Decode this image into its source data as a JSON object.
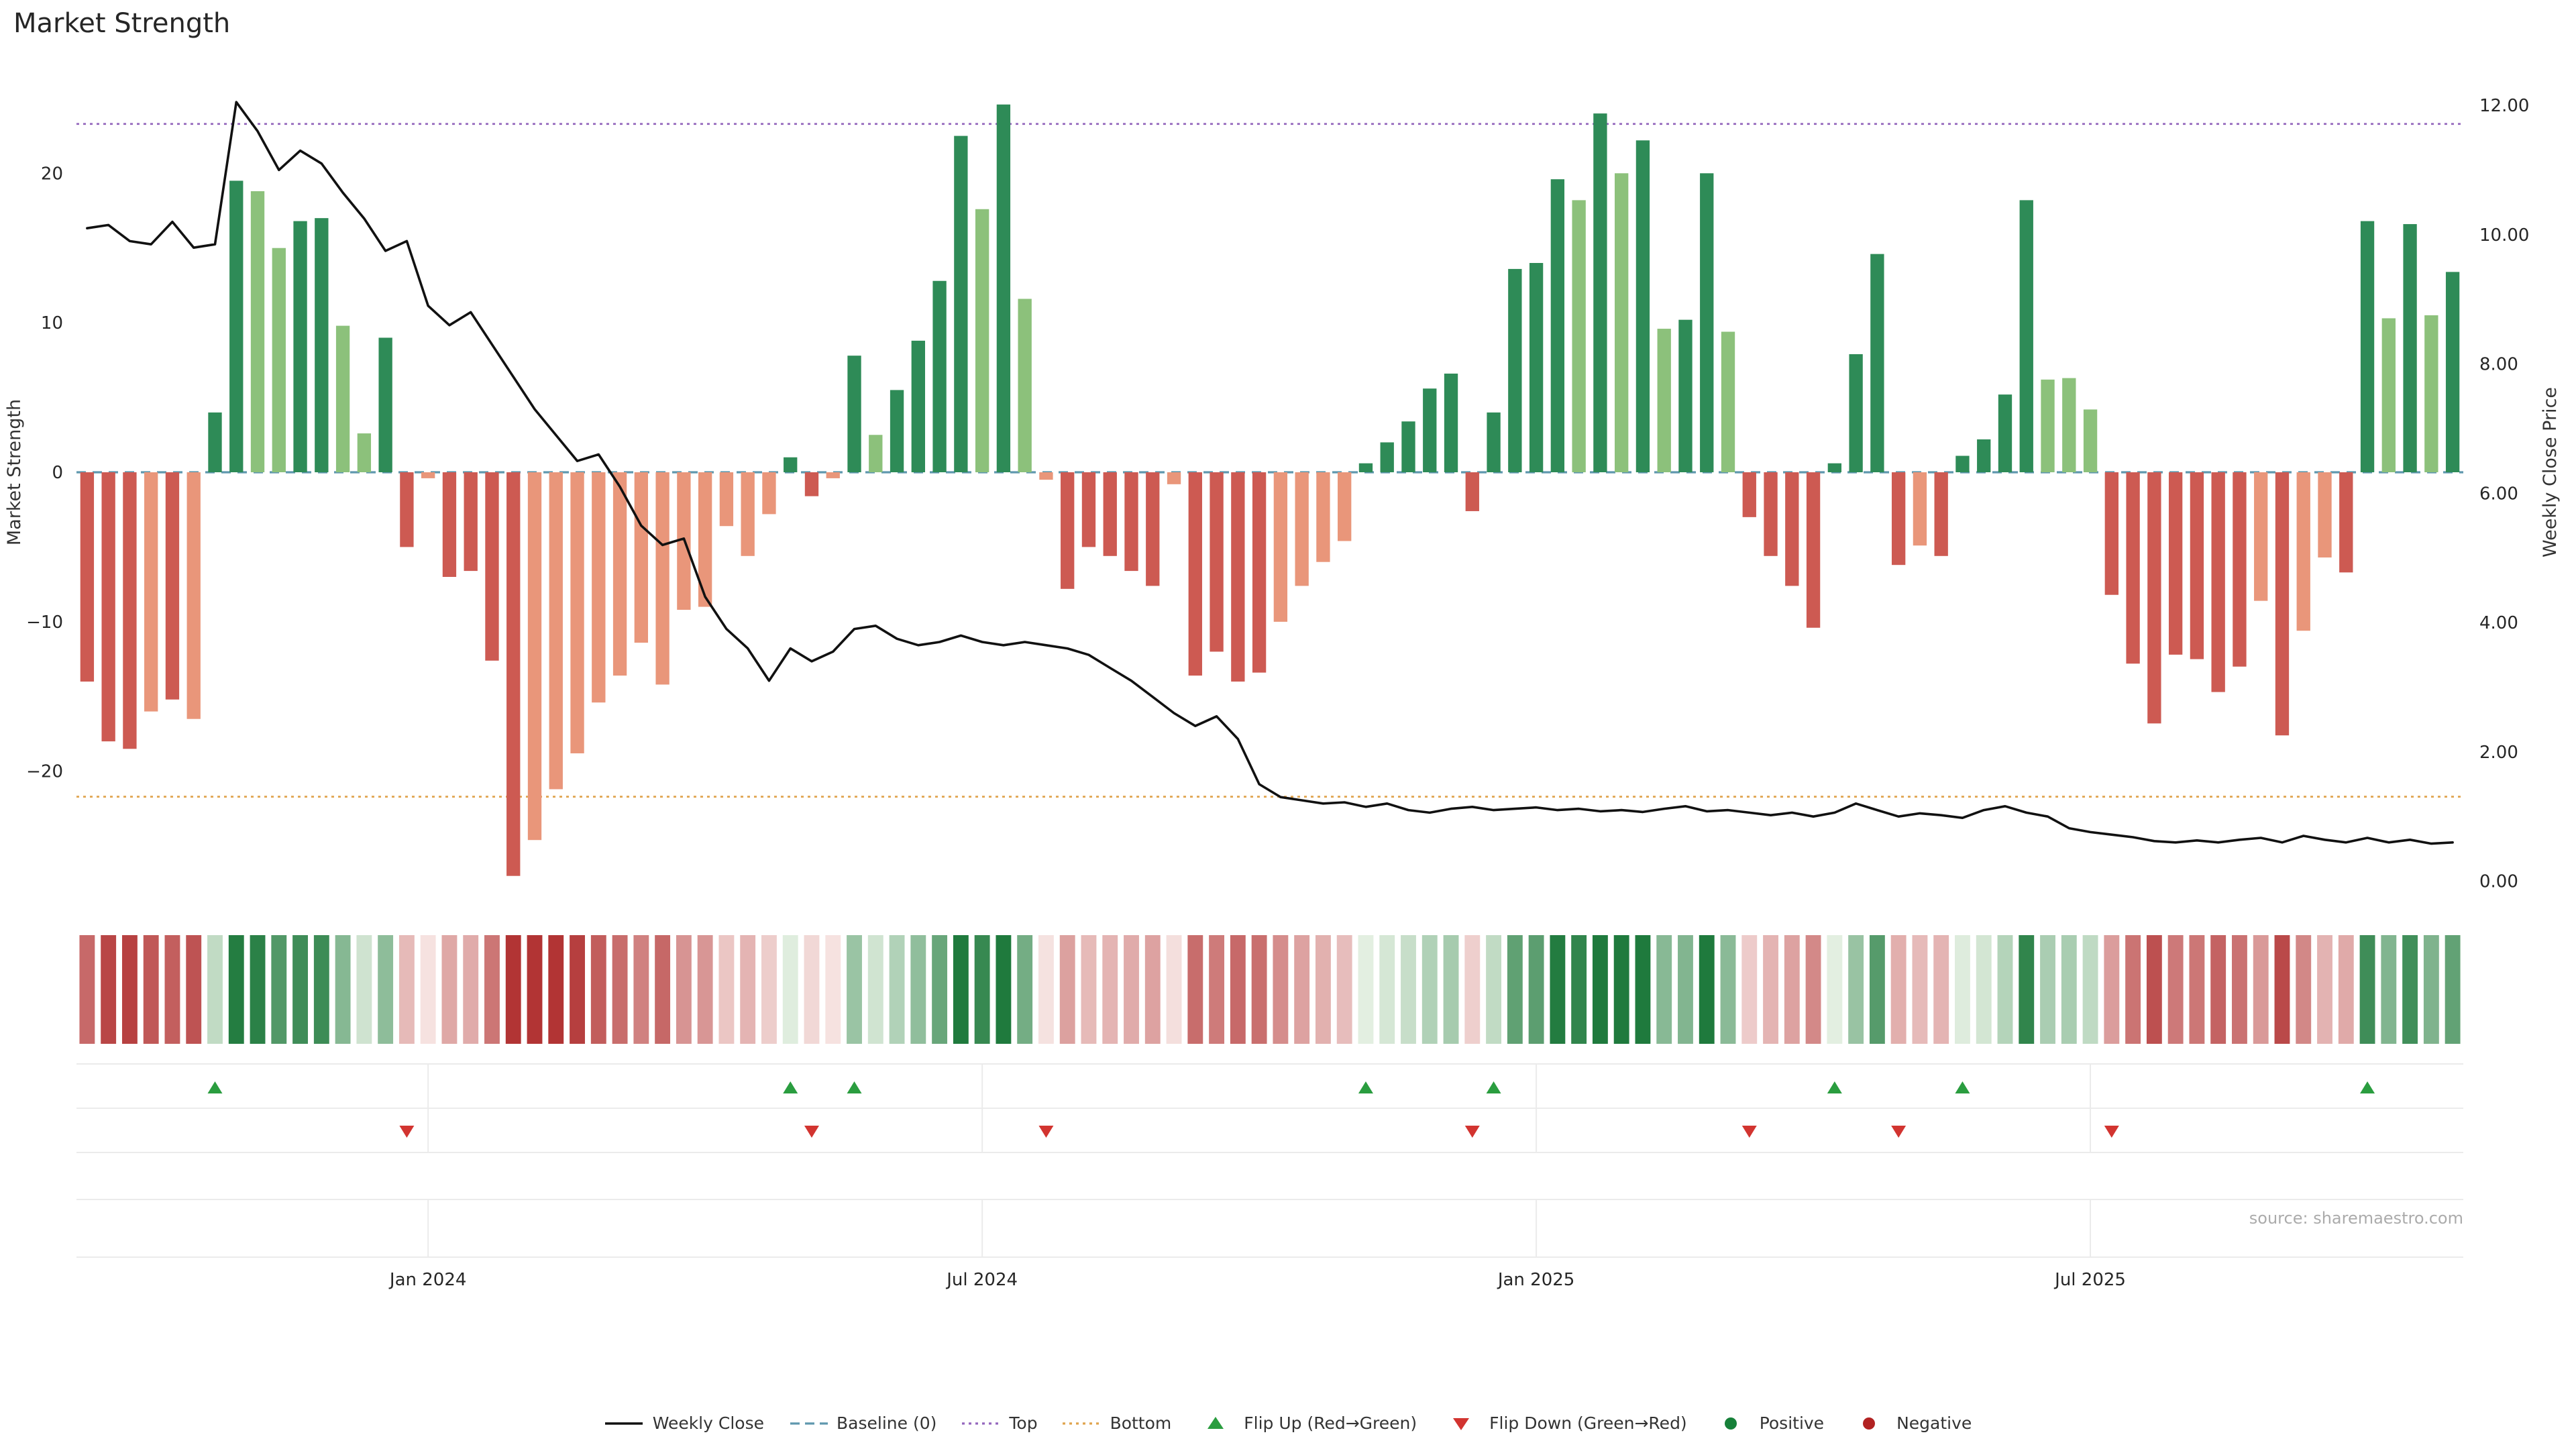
{
  "title": "Market Strength",
  "source": "source: sharemaestro.com",
  "colors": {
    "bar_positive_dark": "#2e8b57",
    "bar_positive_light": "#8cc17b",
    "bar_negative_dark": "#cd5a52",
    "bar_negative_light": "#e9967a",
    "line": "#111111",
    "baseline": "#5f98ae",
    "top_line": "#9467bd",
    "bottom_line": "#e0a44e",
    "flip_up": "#2a9d3f",
    "flip_down": "#d23430",
    "positive_dot": "#168039",
    "negative_dot": "#b22222",
    "heat_pos_pale": "#e9f3e6",
    "heat_pos_deep": "#1f7a3d",
    "heat_neg_pale": "#f7e6e4",
    "heat_neg_deep": "#b23434"
  },
  "chart_data": {
    "type": "bar+line",
    "title": "Market Strength",
    "ylabel_left": "Market Strength",
    "ylabel_right": "Weekly Close Price",
    "ylim_left": [
      -28,
      28
    ],
    "ylim_right": [
      -0.15,
      12.8
    ],
    "yticks_left": [
      {
        "v": 20,
        "label": "20"
      },
      {
        "v": 10,
        "label": "10"
      },
      {
        "v": 0,
        "label": "0"
      },
      {
        "v": -10,
        "label": "−10"
      },
      {
        "v": -20,
        "label": "−20"
      }
    ],
    "yticks_right": [
      {
        "v": 12,
        "label": "12.00"
      },
      {
        "v": 10,
        "label": "10.00"
      },
      {
        "v": 8,
        "label": "8.00"
      },
      {
        "v": 6,
        "label": "6.00"
      },
      {
        "v": 4,
        "label": "4.00"
      },
      {
        "v": 2,
        "label": "2.00"
      },
      {
        "v": 0,
        "label": "0.00"
      }
    ],
    "xticks": [
      {
        "week": 17,
        "label": "Jan 2024"
      },
      {
        "week": 43,
        "label": "Jul 2024"
      },
      {
        "week": 69,
        "label": "Jan 2025"
      },
      {
        "week": 95,
        "label": "Jul 2025"
      }
    ],
    "baseline": 0,
    "top_level": 23.3,
    "bottom_level": -21.7,
    "series": [
      {
        "name": "Market Strength",
        "type": "bar",
        "axis": "left",
        "values": [
          -14,
          -18,
          -18.5,
          -16,
          -15.2,
          -16.5,
          4,
          19.5,
          18.8,
          15,
          16.8,
          17,
          9.8,
          2.6,
          9,
          -5,
          -0.4,
          -7,
          -6.6,
          -12.6,
          -27,
          -24.6,
          -21.2,
          -18.8,
          -15.4,
          -13.6,
          -11.4,
          -14.2,
          -9.2,
          -9,
          -3.6,
          -5.6,
          -2.8,
          1,
          -1.6,
          -0.4,
          7.8,
          2.5,
          5.5,
          8.8,
          12.8,
          22.5,
          17.6,
          24.6,
          11.6,
          -0.5,
          -7.8,
          -5,
          -5.6,
          -6.6,
          -7.6,
          -0.8,
          -13.6,
          -12,
          -14,
          -13.4,
          -10,
          -7.6,
          -6,
          -4.6,
          0.6,
          2,
          3.4,
          5.6,
          6.6,
          -2.6,
          4,
          13.6,
          14,
          19.6,
          18.2,
          24,
          20,
          22.2,
          9.6,
          10.2,
          20,
          9.4,
          -3,
          -5.6,
          -7.6,
          -10.4,
          0.6,
          7.9,
          14.6,
          -6.2,
          -4.9,
          -5.6,
          1.1,
          2.2,
          5.2,
          18.2,
          6.2,
          6.3,
          4.2,
          -8.2,
          -12.8,
          -16.8,
          -12.2,
          -12.5,
          -14.7,
          -13,
          -8.6,
          -17.6,
          -10.6,
          -5.7,
          -6.7,
          16.8,
          10.3,
          16.6,
          10.5,
          13.4
        ],
        "shades": [
          "dr",
          "dr",
          "dr",
          "lr",
          "dr",
          "lr",
          "dg",
          "dg",
          "lg",
          "lg",
          "dg",
          "dg",
          "lg",
          "lg",
          "dg",
          "dr",
          "lr",
          "dr",
          "dr",
          "dr",
          "dr",
          "lr",
          "lr",
          "lr",
          "lr",
          "lr",
          "lr",
          "lr",
          "lr",
          "lr",
          "lr",
          "lr",
          "lr",
          "dg",
          "dr",
          "lr",
          "dg",
          "lg",
          "dg",
          "dg",
          "dg",
          "dg",
          "lg",
          "dg",
          "lg",
          "lr",
          "dr",
          "dr",
          "dr",
          "dr",
          "dr",
          "lr",
          "dr",
          "dr",
          "dr",
          "dr",
          "lr",
          "lr",
          "lr",
          "lr",
          "dg",
          "dg",
          "dg",
          "dg",
          "dg",
          "dr",
          "dg",
          "dg",
          "dg",
          "dg",
          "lg",
          "dg",
          "lg",
          "dg",
          "lg",
          "dg",
          "dg",
          "lg",
          "dr",
          "dr",
          "dr",
          "dr",
          "dg",
          "dg",
          "dg",
          "dr",
          "lr",
          "dr",
          "dg",
          "dg",
          "dg",
          "dg",
          "lg",
          "lg",
          "lg",
          "dr",
          "dr",
          "dr",
          "dr",
          "dr",
          "dr",
          "dr",
          "lr",
          "dr",
          "lr",
          "lr",
          "dr",
          "dg",
          "lg",
          "dg",
          "lg",
          "dg"
        ]
      },
      {
        "name": "Weekly Close",
        "type": "line",
        "axis": "right",
        "values": [
          10.1,
          10.15,
          9.9,
          9.85,
          10.2,
          9.8,
          9.85,
          12.05,
          11.6,
          11.0,
          11.3,
          11.1,
          10.65,
          10.25,
          9.75,
          9.9,
          8.9,
          8.6,
          8.8,
          8.3,
          7.8,
          7.3,
          6.9,
          6.5,
          6.6,
          6.1,
          5.5,
          5.2,
          5.3,
          4.4,
          3.9,
          3.6,
          3.1,
          3.6,
          3.4,
          3.55,
          3.9,
          3.95,
          3.75,
          3.65,
          3.7,
          3.8,
          3.7,
          3.65,
          3.7,
          3.65,
          3.6,
          3.5,
          3.3,
          3.1,
          2.85,
          2.6,
          2.4,
          2.55,
          2.2,
          1.5,
          1.3,
          1.25,
          1.2,
          1.22,
          1.15,
          1.2,
          1.1,
          1.06,
          1.12,
          1.15,
          1.1,
          1.12,
          1.14,
          1.1,
          1.12,
          1.08,
          1.1,
          1.07,
          1.12,
          1.16,
          1.08,
          1.1,
          1.06,
          1.02,
          1.06,
          1.0,
          1.06,
          1.2,
          1.1,
          1.0,
          1.05,
          1.02,
          0.98,
          1.1,
          1.16,
          1.06,
          1.0,
          0.82,
          0.76,
          0.72,
          0.68,
          0.62,
          0.6,
          0.63,
          0.6,
          0.64,
          0.67,
          0.6,
          0.7,
          0.64,
          0.6,
          0.67,
          0.6,
          0.64,
          0.58,
          0.6
        ]
      }
    ],
    "heatmap_values_ref": "series.0.values",
    "flip_up_weeks": [
      7,
      34,
      37,
      61,
      67,
      83,
      89,
      108
    ],
    "flip_down_weeks": [
      16,
      35,
      46,
      66,
      79,
      86,
      96
    ]
  },
  "legend": [
    {
      "label": "Weekly Close",
      "type": "line",
      "color": "#111111"
    },
    {
      "label": "Baseline (0)",
      "type": "dashed",
      "color": "#5f98ae"
    },
    {
      "label": "Top",
      "type": "dotted",
      "color": "#9467bd"
    },
    {
      "label": "Bottom",
      "type": "dotted",
      "color": "#e0a44e"
    },
    {
      "label": "Flip Up (Red→Green)",
      "type": "triangle-up",
      "color": "#2a9d3f"
    },
    {
      "label": "Flip Down (Green→Red)",
      "type": "triangle-down",
      "color": "#d23430"
    },
    {
      "label": "Positive",
      "type": "circle",
      "color": "#168039"
    },
    {
      "label": "Negative",
      "type": "circle",
      "color": "#b22222"
    }
  ]
}
